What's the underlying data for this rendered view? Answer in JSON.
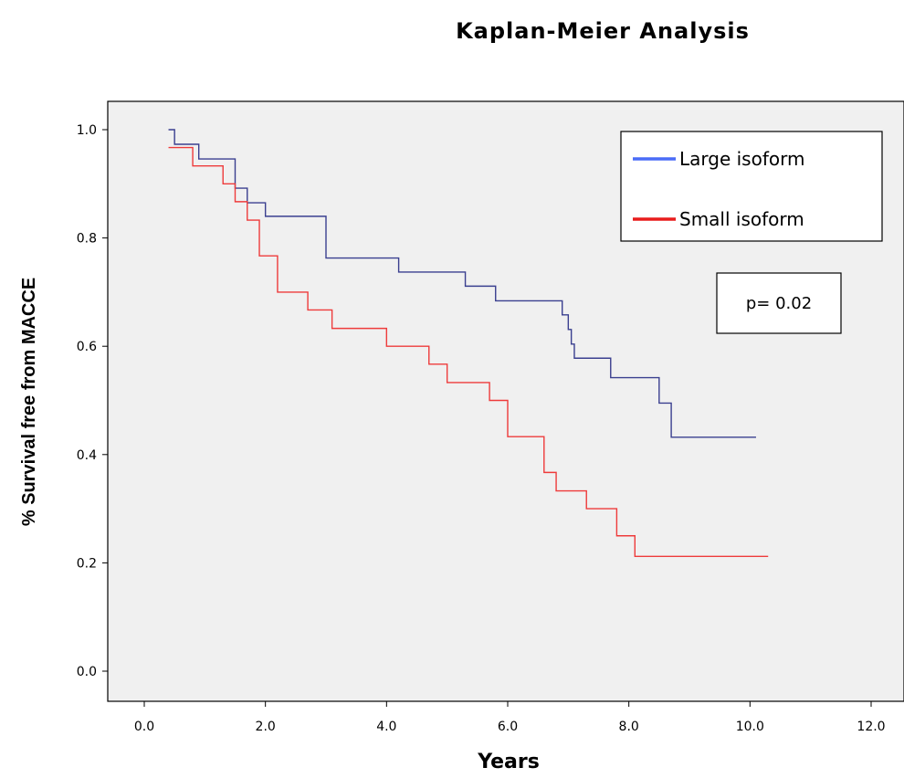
{
  "chart_data": {
    "type": "line",
    "title": "Kaplan-Meier Analysis",
    "xlabel": "Years",
    "ylabel": "% Survival free from MACCE",
    "xlim": [
      -0.6,
      12.6
    ],
    "ylim": [
      -0.06,
      1.06
    ],
    "xticks": [
      0,
      2,
      4,
      6,
      8,
      10,
      12
    ],
    "xtick_labels": [
      "0.0",
      "2.0",
      "4.0",
      "6.0",
      "8.0",
      "10.0",
      "12.0"
    ],
    "yticks": [
      0,
      0.2,
      0.4,
      0.6,
      0.8,
      1.0
    ],
    "ytick_labels": [
      "0.0",
      "0.2",
      "0.4",
      "0.6",
      "0.8",
      "1.0"
    ],
    "grid": false,
    "legend_position": "top-right",
    "annotation": "p= 0.02",
    "series": [
      {
        "name": "Large isoform",
        "color": "#3a3f8f",
        "legend_color": "#4a6cf7",
        "step": true,
        "x": [
          0.4,
          0.5,
          0.9,
          1.5,
          1.7,
          2.0,
          3.0,
          4.2,
          5.3,
          5.8,
          6.9,
          7.0,
          7.05,
          7.1,
          7.2,
          7.7,
          8.5,
          8.7,
          10.1
        ],
        "y": [
          1.0,
          0.973,
          0.946,
          0.892,
          0.865,
          0.84,
          0.763,
          0.737,
          0.711,
          0.684,
          0.658,
          0.631,
          0.604,
          0.578,
          0.578,
          0.542,
          0.495,
          0.432,
          0.432
        ]
      },
      {
        "name": "Small isoform",
        "color": "#ee3b3b",
        "legend_color": "#e81c1c",
        "step": true,
        "x": [
          0.4,
          0.8,
          1.3,
          1.5,
          1.7,
          1.9,
          2.2,
          2.7,
          3.1,
          4.0,
          4.7,
          5.0,
          5.7,
          6.0,
          6.6,
          6.8,
          7.3,
          7.8,
          8.1,
          10.3
        ],
        "y": [
          0.967,
          0.933,
          0.9,
          0.867,
          0.833,
          0.767,
          0.7,
          0.667,
          0.633,
          0.6,
          0.567,
          0.533,
          0.5,
          0.433,
          0.367,
          0.333,
          0.3,
          0.25,
          0.212,
          0.212
        ]
      }
    ]
  }
}
